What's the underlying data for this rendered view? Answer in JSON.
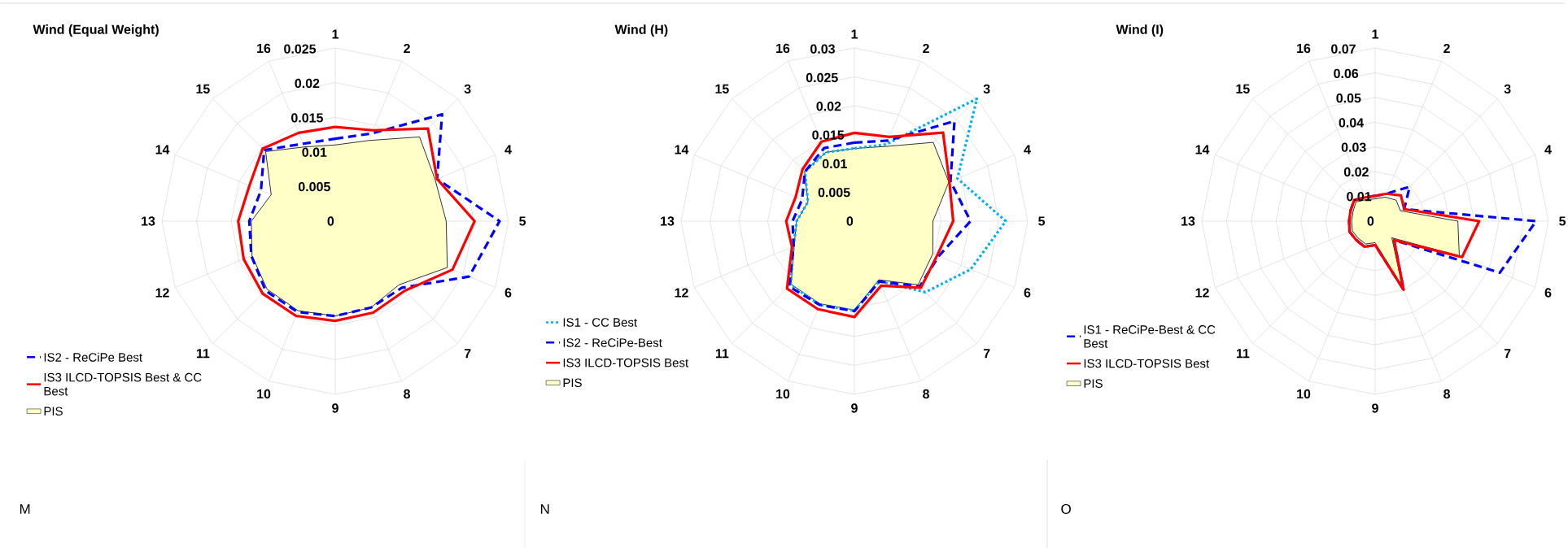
{
  "chart_data": [
    {
      "type": "radar",
      "title": "Wind (Equal Weight)",
      "categories": [
        "1",
        "2",
        "3",
        "4",
        "5",
        "6",
        "7",
        "8",
        "9",
        "10",
        "11",
        "12",
        "13",
        "14",
        "15",
        "16"
      ],
      "ylim": [
        0,
        0.025
      ],
      "yticks": [
        0,
        0.005,
        0.01,
        0.015,
        0.02,
        0.025
      ],
      "grid": true,
      "legend": "bottom left",
      "annotations": [
        "M"
      ],
      "series": [
        {
          "name": "IS2 - ReCiPe Best",
          "color": "#0000ff",
          "line_style": "dashed",
          "values": [
            0.0119,
            0.0137,
            0.0218,
            0.0159,
            0.0237,
            0.0209,
            0.0136,
            0.0135,
            0.0137,
            0.0142,
            0.0142,
            0.0131,
            0.0124,
            0.0116,
            0.0145,
            0.0121
          ]
        },
        {
          "name": "IS3 ILCD-TOPSIS Best & CC Best",
          "color": "#ff0000",
          "line_style": "solid",
          "values": [
            0.0136,
            0.0142,
            0.0189,
            0.0159,
            0.0201,
            0.0183,
            0.0142,
            0.0143,
            0.0144,
            0.0148,
            0.0148,
            0.0143,
            0.014,
            0.0134,
            0.0148,
            0.0138
          ]
        },
        {
          "name": "PIS",
          "type": "area",
          "color": "#ffffc8",
          "values": [
            0.011,
            0.0126,
            0.0172,
            0.0156,
            0.016,
            0.0175,
            0.013,
            0.0135,
            0.0137,
            0.014,
            0.0139,
            0.013,
            0.0121,
            0.01,
            0.0142,
            0.0116
          ]
        }
      ]
    },
    {
      "type": "radar",
      "title": "Wind (H)",
      "categories": [
        "1",
        "2",
        "3",
        "4",
        "5",
        "6",
        "7",
        "8",
        "9",
        "10",
        "11",
        "12",
        "13",
        "14",
        "15",
        "16"
      ],
      "ylim": [
        0,
        0.03
      ],
      "yticks": [
        0,
        0.005,
        0.01,
        0.015,
        0.02,
        0.025,
        0.03
      ],
      "grid": true,
      "legend": "bottom left",
      "annotations": [
        "N"
      ],
      "series": [
        {
          "name": "IS1 - CC Best",
          "color": "#00b0f0",
          "line_style": "dotted",
          "values": [
            0.0126,
            0.0144,
            0.03,
            0.0193,
            0.0262,
            0.0218,
            0.0174,
            0.0113,
            0.0155,
            0.0157,
            0.0156,
            0.0114,
            0.01,
            0.0087,
            0.0121,
            0.0129
          ]
        },
        {
          "name": "IS2 - ReCiPe-Best",
          "color": "#0000ff",
          "line_style": "dashed",
          "values": [
            0.0136,
            0.0151,
            0.0245,
            0.018,
            0.0201,
            0.0158,
            0.016,
            0.0113,
            0.0156,
            0.0157,
            0.016,
            0.0114,
            0.0107,
            0.0098,
            0.0121,
            0.0137
          ]
        },
        {
          "name": "IS3 ILCD-TOPSIS Best",
          "color": "#ff0000",
          "line_style": "solid",
          "values": [
            0.0153,
            0.0158,
            0.0217,
            0.0178,
            0.0171,
            0.0155,
            0.0163,
            0.0121,
            0.0166,
            0.0165,
            0.0165,
            0.0117,
            0.0118,
            0.011,
            0.0127,
            0.0149
          ]
        },
        {
          "name": "PIS",
          "type": "area",
          "color": "#ffffc8",
          "values": [
            0.0126,
            0.014,
            0.0193,
            0.0177,
            0.0136,
            0.0147,
            0.0156,
            0.011,
            0.0154,
            0.0155,
            0.0155,
            0.0113,
            0.01,
            0.0087,
            0.0122,
            0.0129
          ]
        }
      ]
    },
    {
      "type": "radar",
      "title": "Wind (I)",
      "categories": [
        "1",
        "2",
        "3",
        "4",
        "5",
        "6",
        "7",
        "8",
        "9",
        "10",
        "11",
        "12",
        "13",
        "14",
        "15",
        "16"
      ],
      "ylim": [
        0,
        0.07
      ],
      "yticks": [
        0,
        0.01,
        0.02,
        0.03,
        0.04,
        0.05,
        0.06,
        0.07
      ],
      "grid": true,
      "legend": "bottom left",
      "annotations": [
        "O"
      ],
      "series": [
        {
          "name": "IS1 - ReCiPe-Best & CC Best",
          "color": "#0000ff",
          "line_style": "dashed",
          "values": [
            0.0102,
            0.012,
            0.0197,
            0.0127,
            0.065,
            0.0545,
            0.0108,
            0.03,
            0.0097,
            0.0112,
            0.0108,
            0.0112,
            0.0105,
            0.0108,
            0.012,
            0.0104
          ]
        },
        {
          "name": "IS3 ILCD-TOPSIS Best",
          "color": "#ff0000",
          "line_style": "solid",
          "values": [
            0.0102,
            0.012,
            0.0147,
            0.0127,
            0.042,
            0.038,
            0.0108,
            0.03,
            0.0097,
            0.0112,
            0.0108,
            0.0112,
            0.0105,
            0.0108,
            0.012,
            0.0104
          ]
        },
        {
          "name": "PIS",
          "type": "area",
          "color": "#ffffc8",
          "values": [
            0.009,
            0.0105,
            0.012,
            0.011,
            0.0334,
            0.0368,
            0.0095,
            0.029,
            0.0087,
            0.01,
            0.0097,
            0.01,
            0.0095,
            0.0097,
            0.011,
            0.0094
          ]
        }
      ]
    }
  ]
}
